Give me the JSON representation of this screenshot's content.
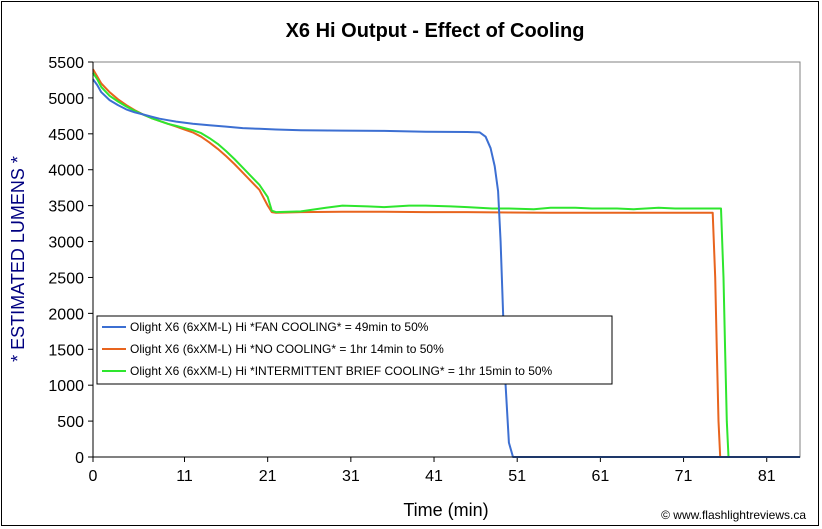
{
  "chart_data": {
    "type": "line",
    "title": "X6 Hi Output - Effect of Cooling",
    "xlabel": "Time (min)",
    "ylabel": "* ESTIMATED LUMENS *",
    "xlim": [
      0,
      85
    ],
    "ylim": [
      0,
      5500
    ],
    "xticks": [
      0,
      11,
      21,
      31,
      41,
      51,
      61,
      71,
      81
    ],
    "yticks": [
      0,
      500,
      1000,
      1500,
      2000,
      2500,
      3000,
      3500,
      4000,
      4500,
      5000,
      5500
    ],
    "grid": false,
    "legend_position": "lower-left",
    "credit": "© www.flashlightreviews.ca",
    "series": [
      {
        "name": "Olight X6 (6xXM-L) Hi *FAN COOLING* = 49min to 50%",
        "color": "#3c6fd2",
        "x": [
          0,
          0.5,
          1,
          2,
          3,
          4,
          5,
          6,
          7,
          8,
          9,
          10,
          12,
          14,
          16,
          18,
          20,
          22,
          25,
          30,
          35,
          40,
          45,
          46.5,
          47.2,
          47.8,
          48.3,
          48.7,
          49.0,
          49.3,
          49.6,
          50.0,
          50.5,
          51,
          55,
          60,
          65,
          70,
          75,
          80,
          85
        ],
        "y": [
          5260,
          5180,
          5080,
          4970,
          4900,
          4840,
          4800,
          4770,
          4740,
          4710,
          4690,
          4670,
          4640,
          4620,
          4600,
          4580,
          4570,
          4560,
          4550,
          4545,
          4540,
          4530,
          4525,
          4520,
          4460,
          4300,
          4050,
          3700,
          3000,
          2000,
          1000,
          200,
          0,
          0,
          0,
          0,
          0,
          0,
          0,
          0,
          0
        ]
      },
      {
        "name": "Olight X6 (6xXM-L) Hi *NO COOLING* = 1hr 14min to 50%",
        "color": "#e8641e",
        "x": [
          0,
          0.5,
          1,
          2,
          3,
          4,
          5,
          6,
          7,
          8,
          9,
          10,
          11,
          12,
          13,
          14,
          15,
          16,
          17,
          18,
          19,
          20,
          21,
          21.5,
          22,
          25,
          30,
          35,
          40,
          45,
          50,
          55,
          60,
          65,
          70,
          74.5,
          74.8,
          75.0,
          75.2,
          75.4,
          76,
          80,
          85
        ],
        "y": [
          5400,
          5300,
          5200,
          5080,
          4980,
          4900,
          4830,
          4770,
          4720,
          4680,
          4640,
          4600,
          4560,
          4520,
          4460,
          4380,
          4290,
          4190,
          4080,
          3960,
          3840,
          3720,
          3500,
          3410,
          3400,
          3410,
          3415,
          3415,
          3410,
          3410,
          3405,
          3400,
          3400,
          3400,
          3400,
          3400,
          2500,
          1500,
          500,
          0,
          0,
          0,
          0
        ]
      },
      {
        "name": "Olight X6 (6xXM-L) Hi *INTERMITTENT BRIEF COOLING* = 1hr 15min to 50%",
        "color": "#2ee62e",
        "x": [
          0,
          0.5,
          1,
          2,
          3,
          4,
          5,
          6,
          7,
          8,
          9,
          10,
          11,
          12,
          13,
          14,
          15,
          16,
          17,
          18,
          19,
          20,
          21,
          21.5,
          22,
          25,
          28,
          30,
          33,
          35,
          38,
          40,
          43,
          45,
          48,
          50,
          53,
          55,
          58,
          60,
          63,
          65,
          68,
          70,
          73,
          75.5,
          75.8,
          76.0,
          76.2,
          76.4,
          77,
          80,
          85
        ],
        "y": [
          5350,
          5260,
          5150,
          5030,
          4950,
          4880,
          4820,
          4770,
          4720,
          4680,
          4640,
          4610,
          4580,
          4550,
          4510,
          4440,
          4360,
          4260,
          4150,
          4030,
          3910,
          3790,
          3620,
          3430,
          3410,
          3420,
          3470,
          3500,
          3490,
          3480,
          3500,
          3500,
          3490,
          3480,
          3460,
          3460,
          3450,
          3470,
          3470,
          3460,
          3460,
          3450,
          3470,
          3460,
          3460,
          3460,
          2500,
          1500,
          500,
          0,
          0,
          0,
          0
        ]
      }
    ]
  }
}
